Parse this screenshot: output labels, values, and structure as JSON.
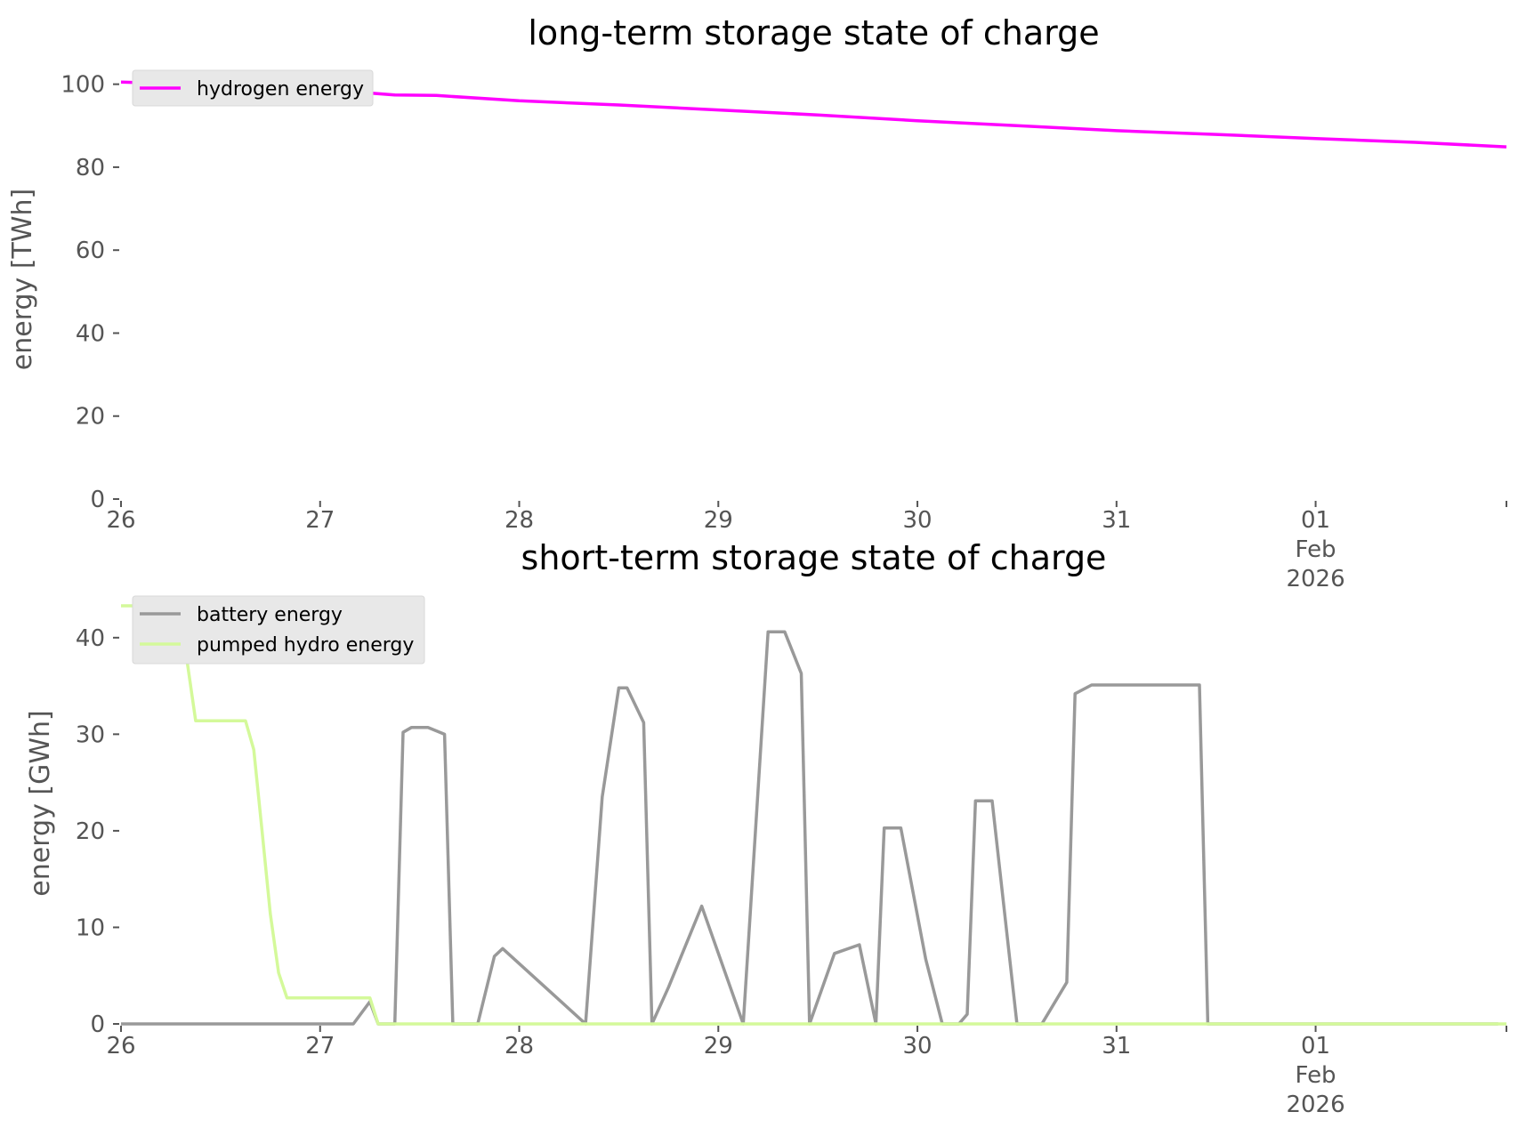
{
  "colors": {
    "hydrogen": "#ff00ff",
    "battery": "#999999",
    "pumped_hydro": "#d4f99a",
    "legend_bg": "#e8e8e8",
    "axis": "#555555"
  },
  "chart_data": [
    {
      "type": "line",
      "title": "long-term storage state of charge",
      "ylabel": "energy [TWh]",
      "xlabel": "",
      "x_unit": "days",
      "xlim": [
        "2026-01-26",
        "2026-02-01 23:00"
      ],
      "ylim": [
        0,
        101
      ],
      "yticks": [
        0,
        20,
        40,
        60,
        80,
        100
      ],
      "xtick_labels": [
        {
          "at": "2026-01-26",
          "lines": [
            "26"
          ]
        },
        {
          "at": "2026-01-27",
          "lines": [
            "27"
          ]
        },
        {
          "at": "2026-01-28",
          "lines": [
            "28"
          ]
        },
        {
          "at": "2026-01-29",
          "lines": [
            "29"
          ]
        },
        {
          "at": "2026-01-30",
          "lines": [
            "30"
          ]
        },
        {
          "at": "2026-01-31",
          "lines": [
            "31"
          ]
        },
        {
          "at": "2026-02-01",
          "lines": [
            "01",
            "Feb",
            "2026"
          ]
        }
      ],
      "grid": false,
      "legend": "top-left",
      "series": [
        {
          "name": "hydrogen energy",
          "color": "#ff00ff",
          "x": [
            "2026-01-26",
            "2026-01-26 12:00",
            "2026-01-27",
            "2026-01-27 09:00",
            "2026-01-27 14:00",
            "2026-01-28",
            "2026-01-28 12:00",
            "2026-01-29",
            "2026-01-29 12:00",
            "2026-01-30",
            "2026-01-30 12:00",
            "2026-01-31",
            "2026-01-31 12:00",
            "2026-02-01",
            "2026-02-01 12:00",
            "2026-02-01 23:00"
          ],
          "y": [
            100.5,
            99.8,
            98.8,
            97.4,
            97.3,
            96.0,
            95.0,
            93.8,
            92.6,
            91.2,
            90.0,
            88.8,
            87.9,
            86.9,
            86.0,
            84.9
          ]
        }
      ]
    },
    {
      "type": "line",
      "title": "short-term storage state of charge",
      "ylabel": "energy [GWh]",
      "xlabel": "",
      "x_unit": "days",
      "xlim": [
        "2026-01-26",
        "2026-02-01 23:00"
      ],
      "ylim": [
        0,
        43.3
      ],
      "yticks": [
        0,
        10,
        20,
        30,
        40
      ],
      "xtick_labels": [
        {
          "at": "2026-01-26",
          "lines": [
            "26"
          ]
        },
        {
          "at": "2026-01-27",
          "lines": [
            "27"
          ]
        },
        {
          "at": "2026-01-28",
          "lines": [
            "28"
          ]
        },
        {
          "at": "2026-01-29",
          "lines": [
            "29"
          ]
        },
        {
          "at": "2026-01-30",
          "lines": [
            "30"
          ]
        },
        {
          "at": "2026-01-31",
          "lines": [
            "31"
          ]
        },
        {
          "at": "2026-02-01",
          "lines": [
            "01",
            "Feb",
            "2026"
          ]
        }
      ],
      "grid": false,
      "legend": "top-left",
      "series": [
        {
          "name": "battery energy",
          "color": "#999999",
          "x": [
            "2026-01-26",
            "2026-01-27 04:00",
            "2026-01-27 06:00",
            "2026-01-27 07:00",
            "2026-01-27 09:00",
            "2026-01-27 10:00",
            "2026-01-27 11:00",
            "2026-01-27 13:00",
            "2026-01-27 15:00",
            "2026-01-27 16:00",
            "2026-01-27 19:00",
            "2026-01-27 21:00",
            "2026-01-27 22:00",
            "2026-01-28 08:00",
            "2026-01-28 10:00",
            "2026-01-28 12:00",
            "2026-01-28 13:00",
            "2026-01-28 15:00",
            "2026-01-28 16:00",
            "2026-01-28 18:00",
            "2026-01-28 22:00",
            "2026-01-29 03:00",
            "2026-01-29 06:00",
            "2026-01-29 08:00",
            "2026-01-29 10:00",
            "2026-01-29 11:00",
            "2026-01-29 14:00",
            "2026-01-29 17:00",
            "2026-01-29 19:00",
            "2026-01-29 20:00",
            "2026-01-29 22:00",
            "2026-01-30 01:00",
            "2026-01-30 03:00",
            "2026-01-30 05:00",
            "2026-01-30 06:00",
            "2026-01-30 07:00",
            "2026-01-30 09:00",
            "2026-01-30 12:00",
            "2026-01-30 15:00",
            "2026-01-30 18:00",
            "2026-01-30 19:00",
            "2026-01-30 21:00",
            "2026-01-31 10:00",
            "2026-01-31 11:00",
            "2026-01-31 13:00",
            "2026-01-31 16:00",
            "2026-01-31 21:00",
            "2026-01-31 22:00",
            "2026-02-01 10:00",
            "2026-02-01 11:00",
            "2026-02-01 13:00",
            "2026-02-01 14:00",
            "2026-02-01 21:00",
            "2026-02-01 22:00"
          ],
          "y": [
            0,
            0,
            2.3,
            0,
            0,
            30.2,
            30.7,
            30.7,
            30.0,
            0,
            0,
            7.0,
            7.8,
            0,
            23.5,
            34.8,
            34.8,
            31.2,
            0,
            3.8,
            12.2,
            0,
            40.6,
            40.6,
            36.3,
            0,
            7.3,
            8.2,
            0,
            20.3,
            20.3,
            6.7,
            0,
            0,
            1.0,
            23.1,
            23.1,
            0,
            0,
            4.3,
            34.2,
            35.1,
            35.1,
            0,
            0,
            0,
            0,
            0,
            0,
            0,
            0,
            0,
            0,
            0
          ]
        },
        {
          "name": "pumped hydro energy",
          "color": "#d4f99a",
          "x": [
            "2026-01-26",
            "2026-01-26 07:00",
            "2026-01-26 09:00",
            "2026-01-26 15:00",
            "2026-01-26 16:00",
            "2026-01-26 17:00",
            "2026-01-26 18:00",
            "2026-01-26 19:00",
            "2026-01-26 20:00",
            "2026-01-27 06:00",
            "2026-01-27 07:00",
            "2026-02-01 23:00"
          ],
          "y": [
            43.3,
            43.3,
            31.4,
            31.4,
            28.4,
            20.0,
            11.4,
            5.3,
            2.7,
            2.7,
            0,
            0
          ]
        }
      ]
    }
  ]
}
